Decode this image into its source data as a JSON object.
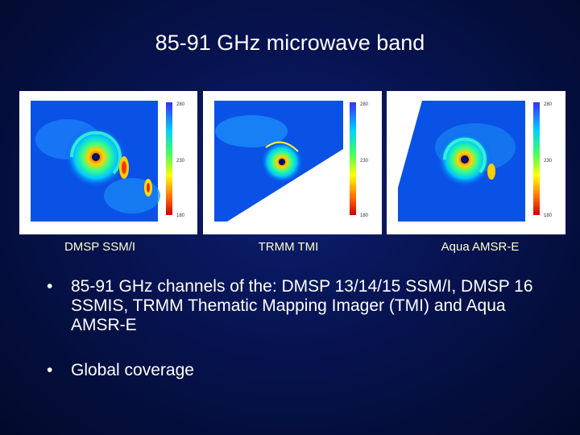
{
  "slide": {
    "title": "85-91 GHz microwave band",
    "panels": [
      {
        "caption": "DMSP SSM/I",
        "eye": "cyclone-eye",
        "colorbar_top": "280",
        "colorbar_mid": "230",
        "colorbar_bot": "180"
      },
      {
        "caption": "TRMM TMI",
        "eye": "cyclone-eye",
        "colorbar_top": "280",
        "colorbar_mid": "230",
        "colorbar_bot": "180"
      },
      {
        "caption": "Aqua AMSR-E",
        "eye": "cyclone-eye",
        "colorbar_top": "280",
        "colorbar_mid": "230",
        "colorbar_bot": "180"
      }
    ],
    "bullet_marker": "•",
    "bullets": [
      "85-91 GHz channels of the: DMSP 13/14/15 SSM/I, DMSP 16 SSMIS, TRMM Thematic Mapping Imager (TMI) and Aqua AMSR-E",
      "Global coverage"
    ]
  }
}
